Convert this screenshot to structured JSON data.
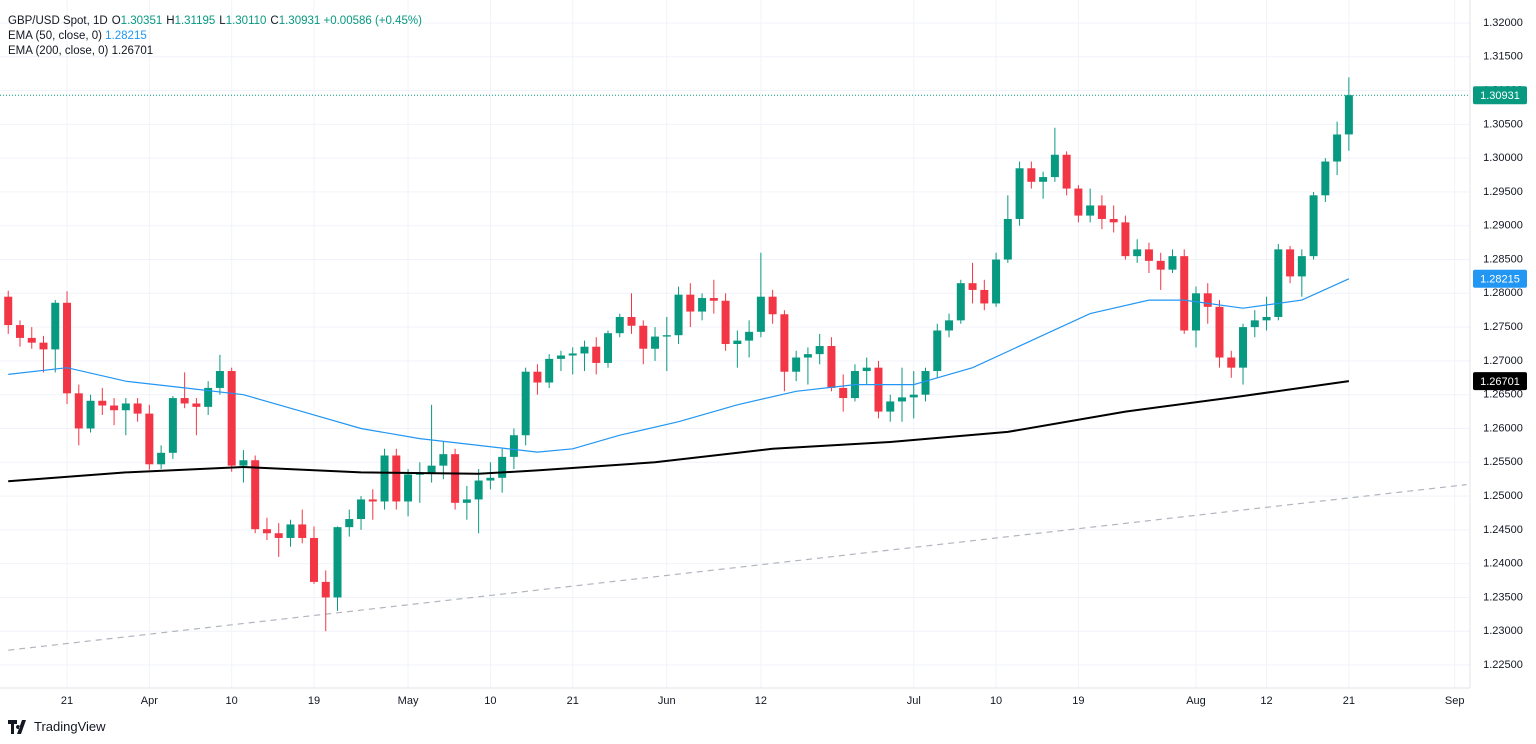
{
  "chart_data": {
    "type": "candlestick",
    "grid": true,
    "last_price_line": true,
    "brand": "TradingView",
    "legend_ohlc": [
      {
        "key": "O",
        "label": "1.30351"
      },
      {
        "key": "H",
        "label": "1.31195"
      },
      {
        "key": "L",
        "label": "1.30110"
      },
      {
        "key": "C",
        "label": "1.30931"
      }
    ],
    "legend_change": "+0.00586 (+0.45%)",
    "xlim": [
      -0.7,
      124.3
    ],
    "ylim": [
      1.2216,
      1.3234
    ],
    "xticks": [
      {
        "value": 5,
        "label": "21"
      },
      {
        "value": 12,
        "label": "Apr"
      },
      {
        "value": 19,
        "label": "10"
      },
      {
        "value": 26,
        "label": "19"
      },
      {
        "value": 34,
        "label": "May"
      },
      {
        "value": 41,
        "label": "10"
      },
      {
        "value": 48,
        "label": "21"
      },
      {
        "value": 56,
        "label": "Jun"
      },
      {
        "value": 64,
        "label": "12"
      },
      {
        "value": 77,
        "label": "Jul"
      },
      {
        "value": 84,
        "label": "10"
      },
      {
        "value": 91,
        "label": "19"
      },
      {
        "value": 101,
        "label": "Aug"
      },
      {
        "value": 107,
        "label": "12"
      },
      {
        "value": 114,
        "label": "21"
      },
      {
        "value": 123,
        "label": "Sep"
      }
    ],
    "yticks": [
      {
        "value": 1.225,
        "label": "1.22500"
      },
      {
        "value": 1.23,
        "label": "1.23000"
      },
      {
        "value": 1.235,
        "label": "1.23500"
      },
      {
        "value": 1.24,
        "label": "1.24000"
      },
      {
        "value": 1.245,
        "label": "1.24500"
      },
      {
        "value": 1.25,
        "label": "1.25000"
      },
      {
        "value": 1.255,
        "label": "1.25500"
      },
      {
        "value": 1.26,
        "label": "1.26000"
      },
      {
        "value": 1.265,
        "label": "1.26500"
      },
      {
        "value": 1.27,
        "label": "1.27000"
      },
      {
        "value": 1.275,
        "label": "1.27500"
      },
      {
        "value": 1.28,
        "label": "1.28000"
      },
      {
        "value": 1.285,
        "label": "1.28500"
      },
      {
        "value": 1.29,
        "label": "1.29000"
      },
      {
        "value": 1.295,
        "label": "1.29500"
      },
      {
        "value": 1.3,
        "label": "1.30000"
      },
      {
        "value": 1.305,
        "label": "1.30500"
      },
      {
        "value": 1.31,
        "label": "1.31000"
      },
      {
        "value": 1.315,
        "label": "1.31500"
      },
      {
        "value": 1.32,
        "label": "1.32000"
      }
    ],
    "series": [
      {
        "name": "GBP/USD Spot, 1D",
        "type": "candlestick",
        "up_color": "#089981",
        "down_color": "#f23645",
        "x": [
          0,
          1,
          2,
          3,
          4,
          5,
          6,
          7,
          8,
          9,
          10,
          11,
          12,
          13,
          14,
          15,
          16,
          17,
          18,
          19,
          20,
          21,
          22,
          23,
          24,
          25,
          26,
          27,
          28,
          29,
          30,
          31,
          32,
          33,
          34,
          35,
          36,
          37,
          38,
          39,
          40,
          41,
          42,
          43,
          44,
          45,
          46,
          47,
          48,
          49,
          50,
          51,
          52,
          53,
          54,
          55,
          56,
          57,
          58,
          59,
          60,
          61,
          62,
          63,
          64,
          65,
          66,
          67,
          68,
          69,
          70,
          71,
          72,
          73,
          74,
          75,
          76,
          77,
          78,
          79,
          80,
          81,
          82,
          83,
          84,
          85,
          86,
          87,
          88,
          89,
          90,
          91,
          92,
          93,
          94,
          95,
          96,
          97,
          98,
          99,
          100,
          101,
          102,
          103,
          104,
          105,
          106,
          107,
          108,
          109,
          110,
          111,
          112,
          113,
          114
        ],
        "open": [
          1.2795,
          1.2753,
          1.2734,
          1.2727,
          1.2717,
          1.2786,
          1.2652,
          1.26,
          1.2641,
          1.2634,
          1.2627,
          1.2637,
          1.2622,
          1.2547,
          1.2564,
          1.2645,
          1.2637,
          1.2632,
          1.266,
          1.2685,
          1.2545,
          1.2553,
          1.2451,
          1.2445,
          1.2438,
          1.2458,
          1.2438,
          1.2373,
          1.235,
          1.2454,
          1.2466,
          1.2495,
          1.2492,
          1.256,
          1.2492,
          1.2532,
          1.2533,
          1.2545,
          1.2562,
          1.249,
          1.2495,
          1.2523,
          1.2527,
          1.2558,
          1.259,
          1.2684,
          1.2668,
          1.2703,
          1.2708,
          1.2711,
          1.2721,
          1.2697,
          1.2741,
          1.2765,
          1.2752,
          1.2718,
          1.2736,
          1.2738,
          1.2798,
          1.2773,
          1.2793,
          1.2789,
          1.2725,
          1.273,
          1.2743,
          1.2795,
          1.2769,
          1.2684,
          1.2705,
          1.271,
          1.2722,
          1.266,
          1.2645,
          1.2685,
          1.269,
          1.2625,
          1.264,
          1.2646,
          1.265,
          1.2685,
          1.2745,
          1.276,
          1.2815,
          1.2805,
          1.2785,
          1.285,
          1.291,
          1.2985,
          1.2965,
          1.2972,
          1.3005,
          1.2955,
          1.2915,
          1.293,
          1.291,
          1.2905,
          1.2855,
          1.2865,
          1.2848,
          1.2835,
          1.2855,
          1.2745,
          1.28,
          1.278,
          1.2705,
          1.269,
          1.275,
          1.276,
          1.2765,
          1.2865,
          1.2825,
          1.2855,
          1.2945,
          1.2995,
          1.30351
        ],
        "high": [
          1.2804,
          1.276,
          1.275,
          1.2737,
          1.279,
          1.2803,
          1.2665,
          1.265,
          1.266,
          1.2645,
          1.2645,
          1.2645,
          1.2635,
          1.2575,
          1.2648,
          1.2683,
          1.2645,
          1.267,
          1.2709,
          1.269,
          1.2568,
          1.256,
          1.2468,
          1.246,
          1.2465,
          1.248,
          1.2455,
          1.239,
          1.2455,
          1.248,
          1.25,
          1.251,
          1.257,
          1.257,
          1.254,
          1.255,
          1.2635,
          1.258,
          1.257,
          1.2515,
          1.254,
          1.255,
          1.257,
          1.26,
          1.269,
          1.2695,
          1.271,
          1.2715,
          1.272,
          1.273,
          1.2735,
          1.2745,
          1.277,
          1.28,
          1.276,
          1.275,
          1.2765,
          1.281,
          1.2815,
          1.28,
          1.282,
          1.28,
          1.2745,
          1.276,
          1.286,
          1.2805,
          1.2775,
          1.2715,
          1.272,
          1.274,
          1.2735,
          1.268,
          1.2695,
          1.2705,
          1.27,
          1.265,
          1.269,
          1.2685,
          1.269,
          1.2755,
          1.277,
          1.282,
          1.2845,
          1.282,
          1.286,
          1.2945,
          1.2995,
          1.2995,
          1.298,
          1.3045,
          1.301,
          1.296,
          1.2955,
          1.2945,
          1.293,
          1.2915,
          1.288,
          1.2875,
          1.286,
          1.2865,
          1.2865,
          1.281,
          1.2815,
          1.279,
          1.2715,
          1.2755,
          1.2775,
          1.2795,
          1.2873,
          1.287,
          1.2865,
          1.295,
          1.3,
          1.3054,
          1.31195
        ],
        "low": [
          1.274,
          1.2721,
          1.2718,
          1.2683,
          1.2683,
          1.2636,
          1.2575,
          1.2594,
          1.262,
          1.2605,
          1.259,
          1.261,
          1.2539,
          1.254,
          1.2555,
          1.263,
          1.259,
          1.262,
          1.265,
          1.2536,
          1.252,
          1.2445,
          1.2435,
          1.241,
          1.2425,
          1.243,
          1.237,
          1.23,
          1.233,
          1.244,
          1.245,
          1.2465,
          1.248,
          1.248,
          1.247,
          1.249,
          1.252,
          1.2525,
          1.248,
          1.2465,
          1.2445,
          1.251,
          1.2505,
          1.254,
          1.2575,
          1.265,
          1.266,
          1.2685,
          1.268,
          1.2685,
          1.268,
          1.269,
          1.2735,
          1.274,
          1.2695,
          1.27,
          1.2685,
          1.2725,
          1.275,
          1.276,
          1.277,
          1.2715,
          1.269,
          1.2705,
          1.2735,
          1.2755,
          1.2655,
          1.267,
          1.2665,
          1.2695,
          1.2655,
          1.2625,
          1.264,
          1.2665,
          1.2615,
          1.261,
          1.261,
          1.2615,
          1.264,
          1.2675,
          1.2735,
          1.2755,
          1.2785,
          1.2775,
          1.278,
          1.2845,
          1.29,
          1.2955,
          1.294,
          1.2965,
          1.2945,
          1.2905,
          1.2905,
          1.2895,
          1.289,
          1.285,
          1.2845,
          1.283,
          1.2805,
          1.283,
          1.274,
          1.272,
          1.2755,
          1.269,
          1.2675,
          1.2665,
          1.2735,
          1.2745,
          1.276,
          1.2815,
          1.2795,
          1.285,
          1.2935,
          1.2975,
          1.3011
        ],
        "close": [
          1.2753,
          1.2734,
          1.2727,
          1.2717,
          1.2786,
          1.2652,
          1.26,
          1.2641,
          1.2634,
          1.2627,
          1.2637,
          1.2622,
          1.2547,
          1.2564,
          1.2645,
          1.2637,
          1.2632,
          1.266,
          1.2685,
          1.2545,
          1.2553,
          1.2451,
          1.2445,
          1.2438,
          1.2458,
          1.2438,
          1.2373,
          1.235,
          1.2454,
          1.2466,
          1.2495,
          1.2492,
          1.256,
          1.2492,
          1.2532,
          1.2533,
          1.2545,
          1.2562,
          1.249,
          1.2495,
          1.2523,
          1.2527,
          1.2558,
          1.259,
          1.2684,
          1.2668,
          1.2703,
          1.2708,
          1.2711,
          1.2721,
          1.2697,
          1.2741,
          1.2765,
          1.2752,
          1.2718,
          1.2736,
          1.2738,
          1.2798,
          1.2773,
          1.2793,
          1.2789,
          1.2725,
          1.273,
          1.2743,
          1.2795,
          1.2769,
          1.2684,
          1.2705,
          1.271,
          1.2722,
          1.266,
          1.2645,
          1.2685,
          1.269,
          1.2625,
          1.264,
          1.2646,
          1.265,
          1.2685,
          1.2745,
          1.276,
          1.2815,
          1.2805,
          1.2785,
          1.285,
          1.291,
          1.2985,
          1.2965,
          1.2972,
          1.3005,
          1.2955,
          1.2915,
          1.293,
          1.291,
          1.2905,
          1.2855,
          1.2865,
          1.2848,
          1.2835,
          1.2855,
          1.2745,
          1.28,
          1.278,
          1.2705,
          1.269,
          1.275,
          1.276,
          1.2765,
          1.2865,
          1.2825,
          1.2855,
          1.2945,
          1.2995,
          1.3035,
          1.30931
        ]
      },
      {
        "name": "EMA (50, close, 0)",
        "type": "line",
        "color": "#2196f3",
        "x": [
          0,
          5,
          10,
          15,
          20,
          25,
          30,
          35,
          40,
          45,
          48,
          52,
          57,
          62,
          67,
          72,
          77,
          82,
          87,
          92,
          97,
          100,
          105,
          110,
          114
        ],
        "values": [
          1.268,
          1.269,
          1.267,
          1.266,
          1.265,
          1.2625,
          1.26,
          1.2585,
          1.2575,
          1.2565,
          1.257,
          1.259,
          1.261,
          1.2635,
          1.2655,
          1.2665,
          1.2665,
          1.269,
          1.273,
          1.277,
          1.279,
          1.279,
          1.2778,
          1.279,
          1.28215
        ]
      },
      {
        "name": "EMA (200, close, 0)",
        "type": "line",
        "color": "#000000",
        "x": [
          0,
          10,
          20,
          30,
          40,
          45,
          55,
          65,
          75,
          85,
          95,
          105,
          114
        ],
        "values": [
          1.2522,
          1.2535,
          1.2543,
          1.2535,
          1.2533,
          1.2538,
          1.255,
          1.257,
          1.258,
          1.2595,
          1.2625,
          1.2648,
          1.26701
        ]
      },
      {
        "type": "line",
        "dashed": true,
        "color": "#b2b5be",
        "x": [
          0,
          124
        ],
        "values": [
          1.2272,
          1.2517
        ]
      }
    ]
  }
}
